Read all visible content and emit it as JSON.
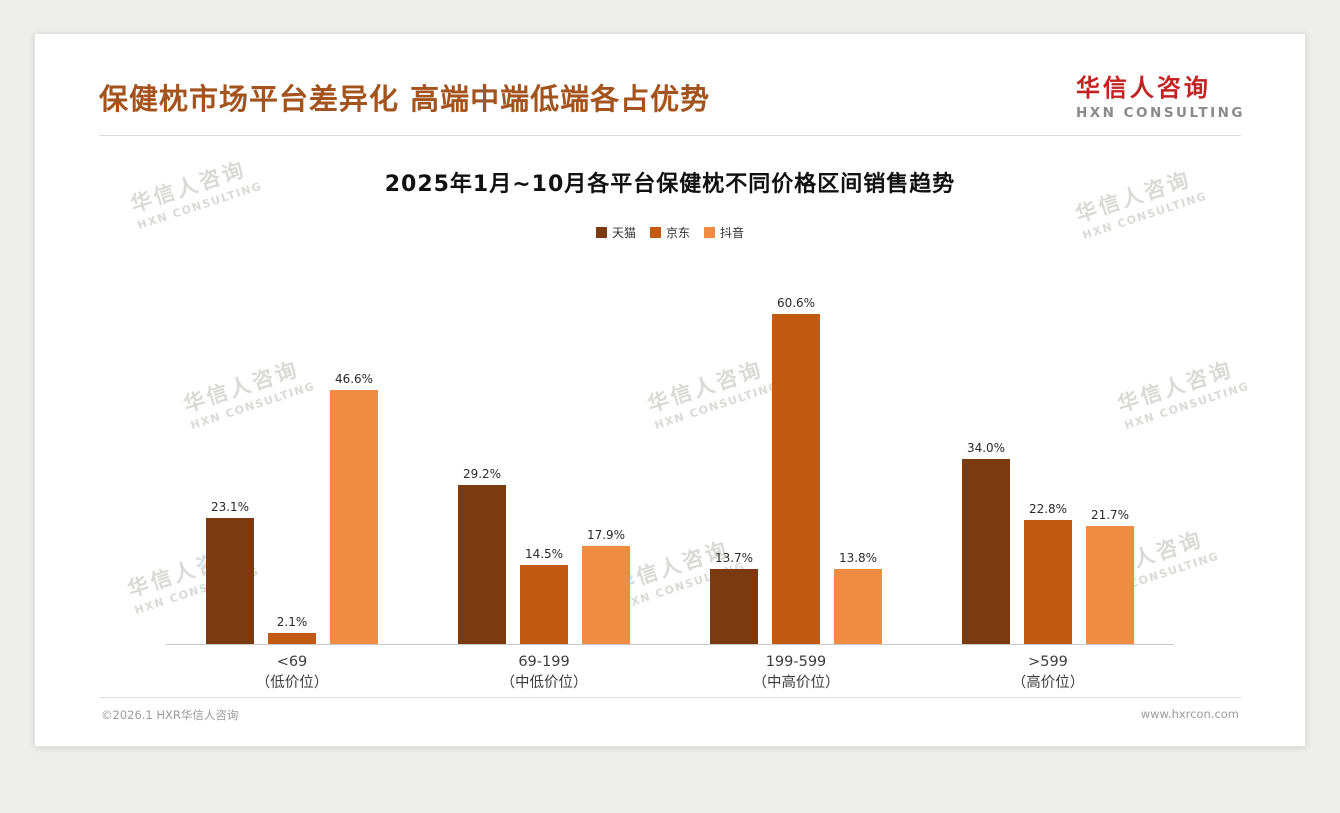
{
  "header": {
    "title": "保健枕市场平台差异化 高端中端低端各占优势",
    "logo_cn": "华信人咨询",
    "logo_en": "HXN CONSULTING"
  },
  "chart_data": {
    "type": "bar",
    "title": "2025年1月~10月各平台保健枕不同价格区间销售趋势",
    "categories": [
      "<69",
      "69-199",
      "199-599",
      ">599"
    ],
    "category_sublabels": [
      "（低价位）",
      "（中低价位）",
      "（中高价位）",
      "（高价位）"
    ],
    "series": [
      {
        "name": "天猫",
        "color": "#7b3a0f",
        "values": [
          23.1,
          29.2,
          13.7,
          34.0
        ]
      },
      {
        "name": "京东",
        "color": "#c35a11",
        "values": [
          2.1,
          14.5,
          60.6,
          22.8
        ]
      },
      {
        "name": "抖音",
        "color": "#ef8c41",
        "values": [
          46.6,
          17.9,
          13.8,
          21.7
        ]
      }
    ],
    "value_suffix": "%",
    "ylim": [
      0,
      71.5
    ],
    "grid": false,
    "legend_position": "top",
    "xlabel": "",
    "ylabel": ""
  },
  "footer": {
    "left": "©2026.1 HXR华信人咨询",
    "right": "www.hxrcon.com"
  },
  "watermark": {
    "cn": "华信人咨询",
    "en": "HXN CONSULTING"
  },
  "colors": {
    "title": "#a3531d",
    "logo_red": "#c32222",
    "logo_gray": "#8a8a8a"
  }
}
